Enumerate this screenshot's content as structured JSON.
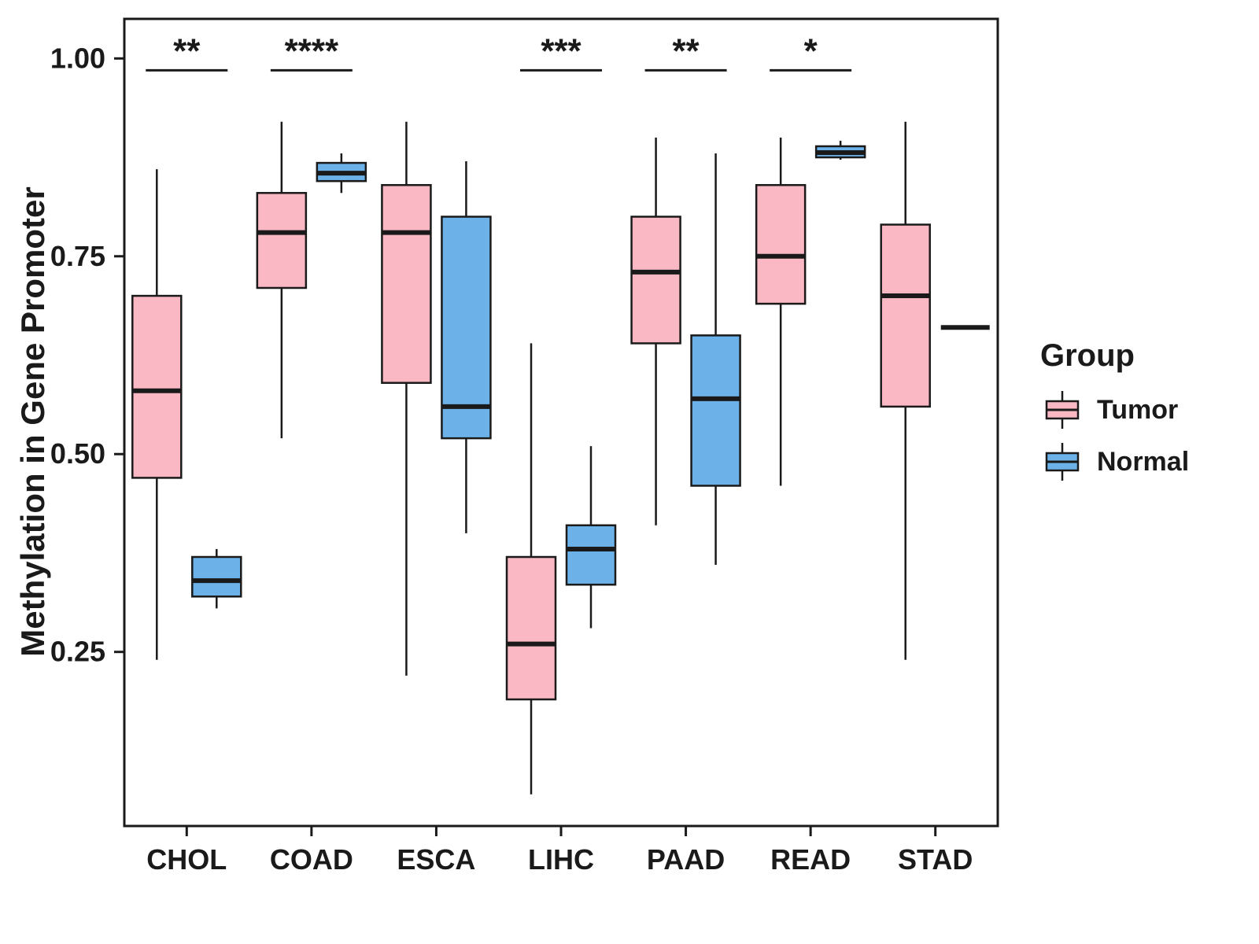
{
  "chart_data": {
    "type": "boxplot",
    "title": "",
    "xlabel": "",
    "ylabel": "Methylation in Gene Promoter",
    "ylim": [
      0.03,
      1.05
    ],
    "yticks": [
      0.25,
      0.5,
      0.75,
      1.0
    ],
    "grid": false,
    "categories": [
      "CHOL",
      "COAD",
      "ESCA",
      "LIHC",
      "PAAD",
      "READ",
      "STAD"
    ],
    "legend": {
      "title": "Group",
      "position": "right",
      "entries": [
        {
          "label": "Tumor",
          "color": "#F9B8C3"
        },
        {
          "label": "Normal",
          "color": "#6CB2E8"
        }
      ]
    },
    "series": [
      {
        "name": "Tumor",
        "color": "#F9B8C3",
        "boxes": [
          {
            "category": "CHOL",
            "whisker_low": 0.24,
            "q1": 0.47,
            "median": 0.58,
            "q3": 0.7,
            "whisker_high": 0.86
          },
          {
            "category": "COAD",
            "whisker_low": 0.52,
            "q1": 0.71,
            "median": 0.78,
            "q3": 0.83,
            "whisker_high": 0.92
          },
          {
            "category": "ESCA",
            "whisker_low": 0.22,
            "q1": 0.59,
            "median": 0.78,
            "q3": 0.84,
            "whisker_high": 0.92
          },
          {
            "category": "LIHC",
            "whisker_low": 0.07,
            "q1": 0.19,
            "median": 0.26,
            "q3": 0.37,
            "whisker_high": 0.64
          },
          {
            "category": "PAAD",
            "whisker_low": 0.41,
            "q1": 0.64,
            "median": 0.73,
            "q3": 0.8,
            "whisker_high": 0.9
          },
          {
            "category": "READ",
            "whisker_low": 0.46,
            "q1": 0.69,
            "median": 0.75,
            "q3": 0.84,
            "whisker_high": 0.9
          },
          {
            "category": "STAD",
            "whisker_low": 0.24,
            "q1": 0.56,
            "median": 0.7,
            "q3": 0.79,
            "whisker_high": 0.92
          }
        ]
      },
      {
        "name": "Normal",
        "color": "#6CB2E8",
        "boxes": [
          {
            "category": "CHOL",
            "whisker_low": 0.305,
            "q1": 0.32,
            "median": 0.34,
            "q3": 0.37,
            "whisker_high": 0.38
          },
          {
            "category": "COAD",
            "whisker_low": 0.83,
            "q1": 0.845,
            "median": 0.855,
            "q3": 0.868,
            "whisker_high": 0.88
          },
          {
            "category": "ESCA",
            "whisker_low": 0.4,
            "q1": 0.52,
            "median": 0.56,
            "q3": 0.8,
            "whisker_high": 0.87
          },
          {
            "category": "LIHC",
            "whisker_low": 0.28,
            "q1": 0.335,
            "median": 0.38,
            "q3": 0.41,
            "whisker_high": 0.51
          },
          {
            "category": "PAAD",
            "whisker_low": 0.36,
            "q1": 0.46,
            "median": 0.57,
            "q3": 0.65,
            "whisker_high": 0.88
          },
          {
            "category": "READ",
            "whisker_low": 0.872,
            "q1": 0.875,
            "median": 0.881,
            "q3": 0.889,
            "whisker_high": 0.896
          },
          {
            "category": "STAD",
            "whisker_low": 0.66,
            "q1": 0.66,
            "median": 0.66,
            "q3": 0.66,
            "whisker_high": 0.66
          }
        ]
      }
    ],
    "significance": [
      {
        "category": "CHOL",
        "label": "**",
        "bar_y": 0.985
      },
      {
        "category": "COAD",
        "label": "****",
        "bar_y": 0.985
      },
      {
        "category": "LIHC",
        "label": "***",
        "bar_y": 0.985
      },
      {
        "category": "PAAD",
        "label": "**",
        "bar_y": 0.985
      },
      {
        "category": "READ",
        "label": "*",
        "bar_y": 0.985
      }
    ]
  }
}
